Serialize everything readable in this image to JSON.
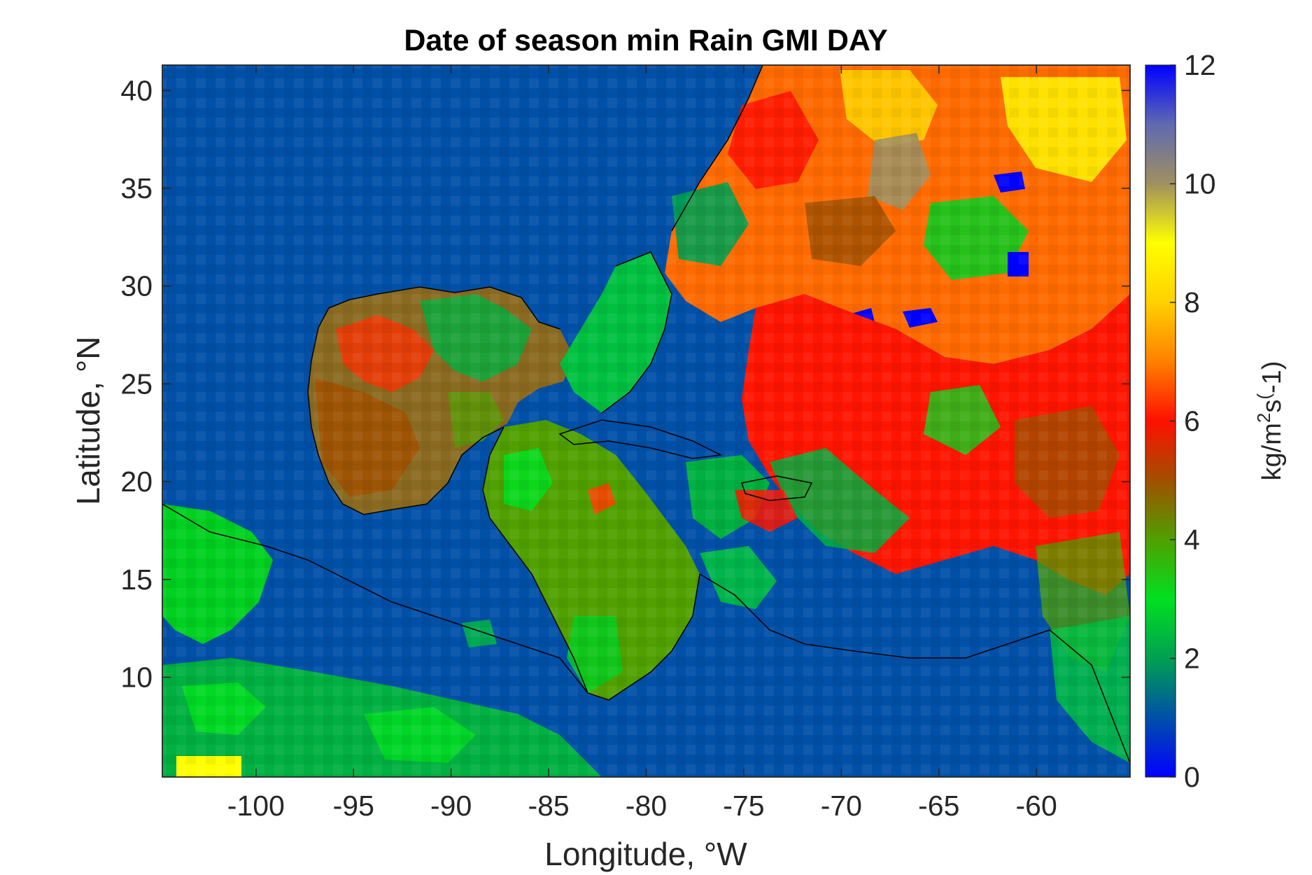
{
  "chart_data": {
    "type": "heatmap",
    "title": "Date of season min Rain GMI DAY",
    "xlabel": "Longitude, °W",
    "ylabel": "Latitude, °N",
    "xlim": [
      -104.8,
      -55.2
    ],
    "ylim": [
      4.9,
      41.3
    ],
    "xticks": [
      "-100",
      "-95",
      "-90",
      "-85",
      "-80",
      "-75",
      "-70",
      "-65",
      "-60"
    ],
    "xtick_values": [
      -100,
      -95,
      -90,
      -85,
      -80,
      -75,
      -70,
      -65,
      -60
    ],
    "yticks": [
      "10",
      "15",
      "20",
      "25",
      "30",
      "35",
      "40"
    ],
    "ytick_values": [
      10,
      15,
      20,
      25,
      30,
      35,
      40
    ],
    "colorbar": {
      "label": "kg/m2s(-1)",
      "label_parts": {
        "base": "kg/m",
        "sup1": "2",
        "mid": "s",
        "sup2": "(",
        "tail": "-1)"
      },
      "range": [
        0,
        12
      ],
      "ticks": [
        "0",
        "2",
        "4",
        "6",
        "8",
        "10",
        "12"
      ],
      "tick_values": [
        0,
        2,
        4,
        6,
        8,
        10,
        12
      ],
      "colors": [
        "#0000ff",
        "#0050a8",
        "#00a050",
        "#00e020",
        "#50a000",
        "#a05000",
        "#ff1000",
        "#ff8000",
        "#ffd000",
        "#ffff00",
        "#a09060",
        "#606ab0",
        "#0000ff"
      ]
    },
    "background_color": "#0050a8",
    "coastline_color": "#000000",
    "grid": false
  }
}
